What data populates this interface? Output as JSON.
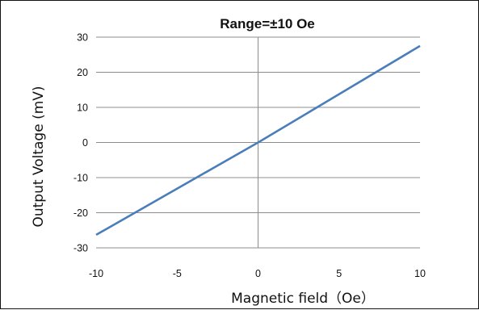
{
  "chart_data": {
    "type": "line",
    "title": "Range=±10 Oe",
    "xlabel": "Magnetic field（Oe）",
    "ylabel": "Output Voltage (mV)",
    "xlim": [
      -10,
      10
    ],
    "ylim": [
      -30,
      30
    ],
    "x_ticks": [
      -10,
      -5,
      0,
      5,
      10
    ],
    "y_ticks": [
      -30,
      -20,
      -10,
      0,
      10,
      20,
      30
    ],
    "grid": "horizontal",
    "legend": "none",
    "series": [
      {
        "color": "#4a7ebb",
        "x": [
          -10,
          0,
          10
        ],
        "y": [
          -26.3,
          0,
          27.5
        ]
      }
    ],
    "colors": {
      "grid": "#8c8c8c",
      "zero_axis": "#8c8c8c",
      "border": "#111111"
    }
  }
}
